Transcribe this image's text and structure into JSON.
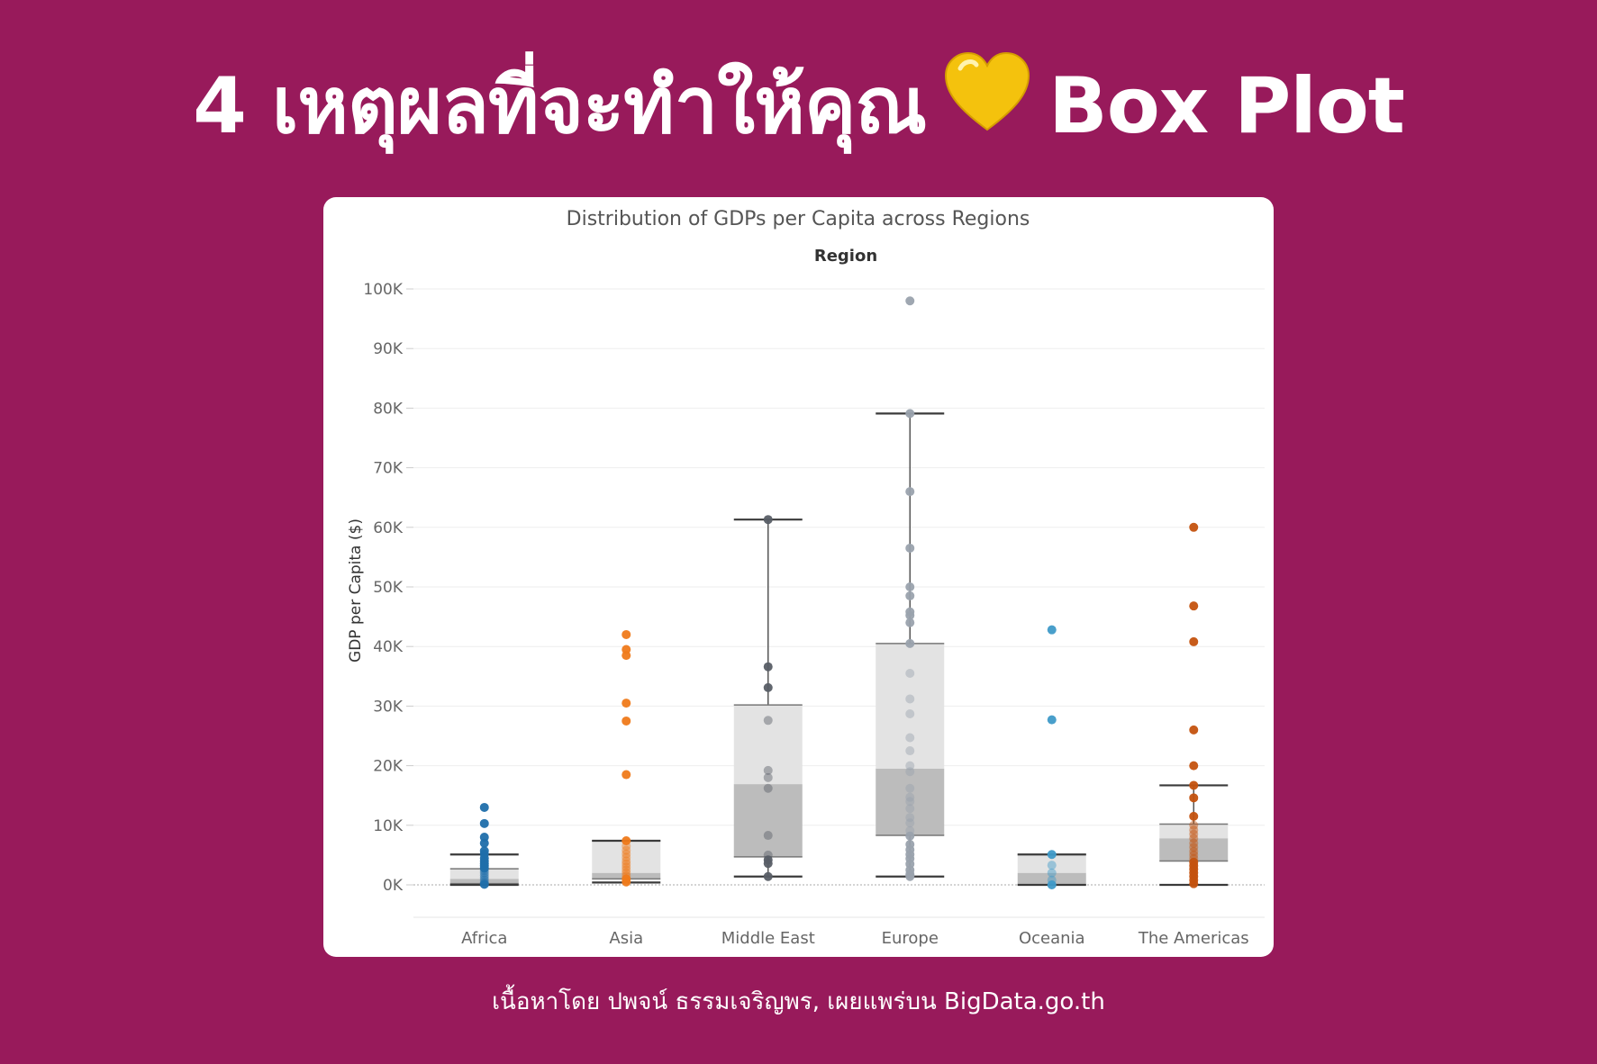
{
  "headline": {
    "number": "4",
    "thai_text": "เหตุผลที่จะทำให้คุณ",
    "english_text": "Box Plot",
    "heart_icon": "yellow-heart-icon",
    "heart_color": "#f4c20d"
  },
  "footer": {
    "credit": "เนื้อหาโดย ปพจน์ ธรรมเจริญพร, เผยแพร่บน BigData.go.th"
  },
  "colors": {
    "background": "#981a5b",
    "card": "#ffffff",
    "box_upper": "#e3e3e3",
    "box_lower": "#bcbcbc",
    "whisker": "#3a3a3a"
  },
  "chart_data": {
    "type": "boxplot",
    "title": "Distribution of GDPs per Capita across Regions",
    "column_header": "Region",
    "ylabel": "GDP per Capita ($)",
    "ylim": [
      -5000,
      100000
    ],
    "yticks": [
      0,
      10000,
      20000,
      30000,
      40000,
      50000,
      60000,
      70000,
      80000,
      90000,
      100000
    ],
    "ytick_labels": [
      "0K",
      "10K",
      "20K",
      "30K",
      "40K",
      "50K",
      "60K",
      "70K",
      "80K",
      "90K",
      "100K"
    ],
    "grid": true,
    "categories": [
      "Africa",
      "Asia",
      "Middle East",
      "Europe",
      "Oceania",
      "The Americas"
    ],
    "series": [
      {
        "name": "Africa",
        "color": "#1f6eaa",
        "box": {
          "whisker_low": 0,
          "q1": 200,
          "median": 1000,
          "q3": 2700,
          "whisker_high": 5100
        },
        "points": [
          13000,
          10300,
          8000,
          7000,
          5700,
          5200,
          4500,
          4000,
          3600,
          3200,
          2800,
          2400,
          2000,
          1600,
          1200,
          800,
          400,
          100
        ]
      },
      {
        "name": "Asia",
        "color": "#ef7a1a",
        "box": {
          "whisker_low": 400,
          "q1": 1000,
          "median": 2000,
          "q3": 7400,
          "whisker_high": 7400
        },
        "points": [
          42000,
          39500,
          38500,
          30500,
          27500,
          18500,
          7400,
          6500,
          5800,
          5200,
          4600,
          4000,
          3500,
          3000,
          2500,
          2000,
          1500,
          1000,
          500
        ]
      },
      {
        "name": "Middle East",
        "color": "#585e66",
        "box": {
          "whisker_low": 1400,
          "q1": 4700,
          "median": 16900,
          "q3": 30200,
          "whisker_high": 61300
        },
        "points": [
          61300,
          36600,
          33100,
          27600,
          19200,
          18000,
          16200,
          8300,
          5000,
          4200,
          3600,
          1400
        ]
      },
      {
        "name": "Europe",
        "color": "#9aa2ad",
        "box": {
          "whisker_low": 1400,
          "q1": 8300,
          "median": 19500,
          "q3": 40500,
          "whisker_high": 79100
        },
        "points": [
          98000,
          79100,
          66000,
          56500,
          50000,
          48500,
          45800,
          45200,
          44000,
          40500,
          35500,
          31200,
          28700,
          24700,
          22500,
          20000,
          19000,
          16200,
          14700,
          14000,
          12800,
          11300,
          10400,
          9100,
          8200,
          6800,
          5900,
          5100,
          4400,
          3500,
          2500,
          1800,
          1400
        ]
      },
      {
        "name": "Oceania",
        "color": "#3f9ac8",
        "box": {
          "whisker_low": 0,
          "q1": 0,
          "median": 2000,
          "q3": 5100,
          "whisker_high": 5100
        },
        "points": [
          42800,
          27700,
          5100,
          3300,
          2000,
          800,
          0
        ]
      },
      {
        "name": "The Americas",
        "color": "#c4520e",
        "box": {
          "whisker_low": 0,
          "q1": 4000,
          "median": 7800,
          "q3": 10200,
          "whisker_high": 16700
        },
        "points": [
          60000,
          46800,
          40800,
          26000,
          20000,
          16700,
          14600,
          11500,
          10000,
          9200,
          8500,
          7800,
          7000,
          6300,
          5600,
          5000,
          4400,
          3800,
          3200,
          2600,
          2000,
          1400,
          800,
          200
        ]
      }
    ]
  }
}
